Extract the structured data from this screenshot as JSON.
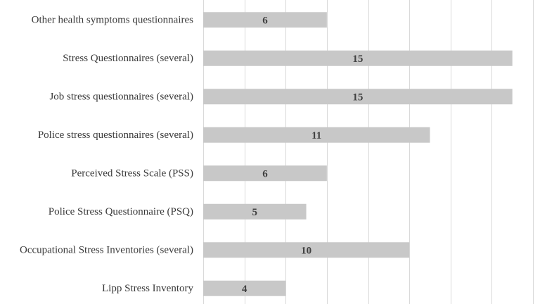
{
  "chart_data": {
    "type": "bar",
    "orientation": "horizontal",
    "title": "",
    "xlabel": "",
    "ylabel": "",
    "categories": [
      "Other health symptoms questionnaires",
      "Stress Questionnaires (several)",
      "Job stress questionnaires (several)",
      "Police stress questionnaires (several)",
      "Perceived Stress Scale (PSS)",
      "Police Stress Questionnaire (PSQ)",
      "Occupational Stress Inventories (several)",
      "Lipp Stress Inventory"
    ],
    "values": [
      6,
      15,
      15,
      11,
      6,
      5,
      10,
      4
    ],
    "xlim": [
      0,
      16
    ],
    "x_grid_step": 2,
    "grid": true,
    "legend": "none",
    "data_labels": true,
    "colors": {
      "bar": "#c8c8c8",
      "grid": "#d9d9d9",
      "text": "#3a3a3a"
    }
  }
}
